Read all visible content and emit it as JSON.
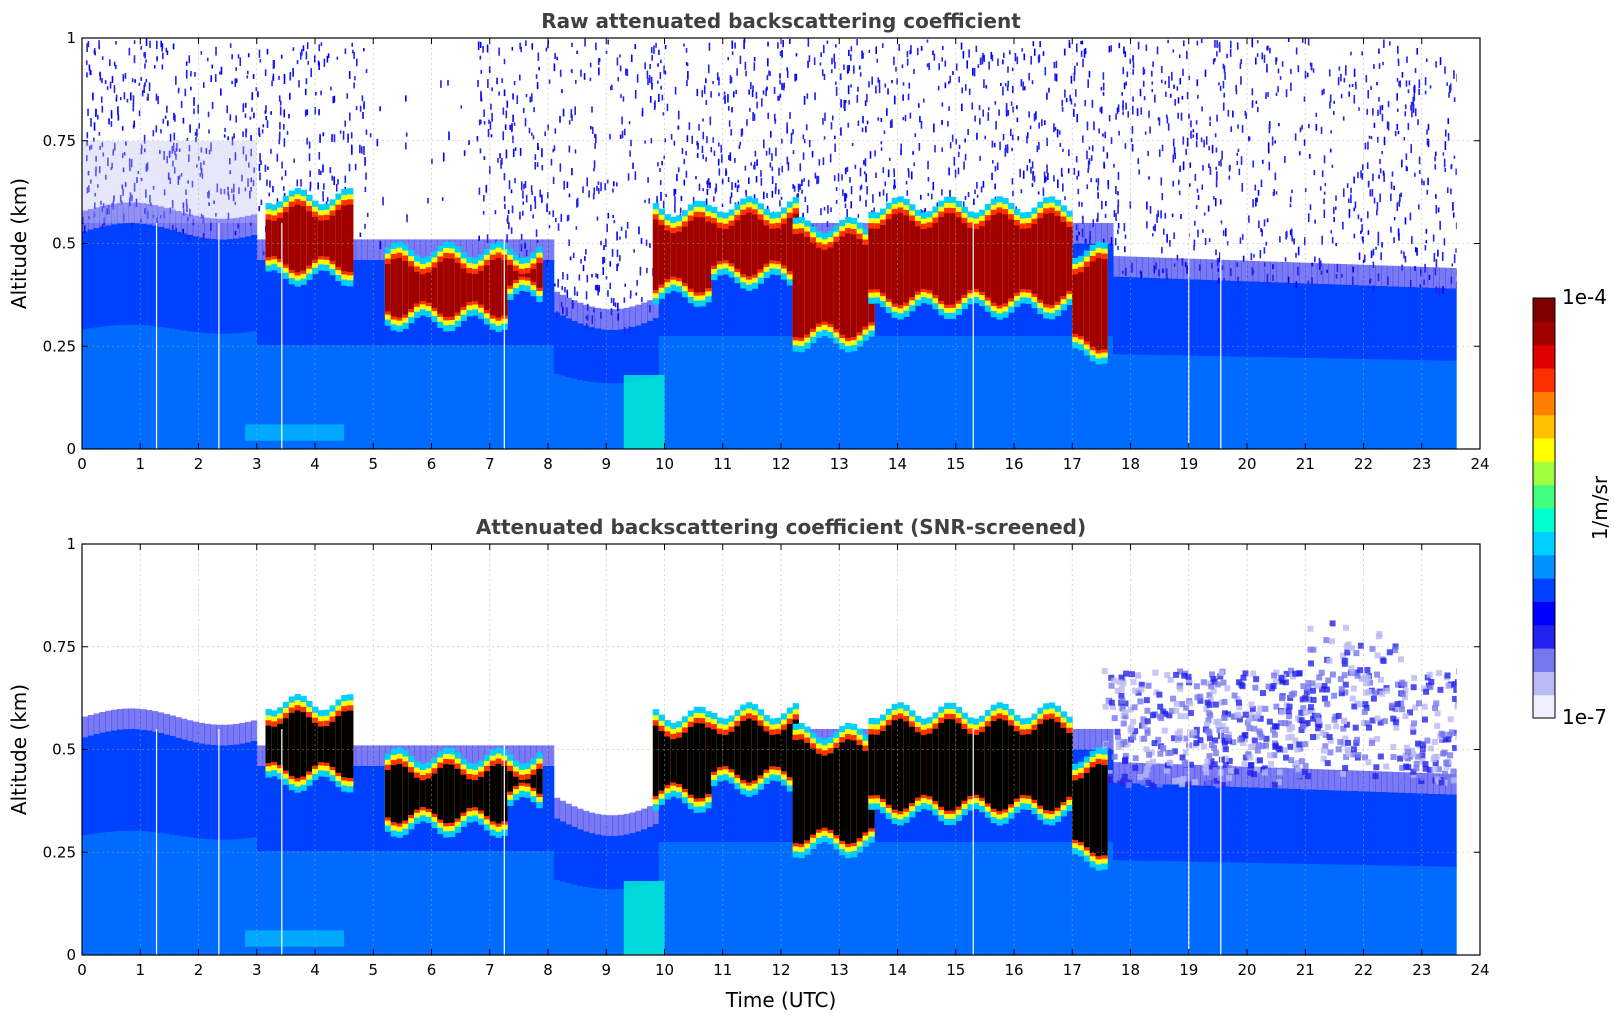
{
  "chart_data": [
    {
      "type": "heatmap",
      "title": "Raw attenuated backscattering coefficient",
      "xlabel": "",
      "ylabel": "Altitude (km)",
      "xlim": [
        0,
        24
      ],
      "ylim": [
        0,
        1
      ],
      "xticks": [
        "0",
        "1",
        "2",
        "3",
        "4",
        "5",
        "6",
        "7",
        "8",
        "9",
        "10",
        "11",
        "12",
        "13",
        "14",
        "15",
        "16",
        "17",
        "18",
        "19",
        "20",
        "21",
        "22",
        "23",
        "24"
      ],
      "yticks": [
        "0",
        "0.25",
        "0.5",
        "0.75",
        "1"
      ],
      "grid": true,
      "data_end_time": 23.6,
      "noise_level": "high",
      "cloud_layers": [
        {
          "t0": 3.15,
          "t1": 4.6,
          "base": 0.43,
          "top": 0.6
        },
        {
          "t0": 5.2,
          "t1": 7.2,
          "base": 0.32,
          "top": 0.47
        },
        {
          "t0": 7.3,
          "t1": 7.8,
          "base": 0.38,
          "top": 0.47
        },
        {
          "t0": 9.8,
          "t1": 10.7,
          "base": 0.38,
          "top": 0.57
        },
        {
          "t0": 10.8,
          "t1": 12.2,
          "base": 0.42,
          "top": 0.58
        },
        {
          "t0": 12.2,
          "t1": 13.5,
          "base": 0.27,
          "top": 0.53
        },
        {
          "t0": 13.5,
          "t1": 17.0,
          "base": 0.35,
          "top": 0.58
        },
        {
          "t0": 17.0,
          "t1": 17.6,
          "base": 0.24,
          "top": 0.47
        }
      ]
    },
    {
      "type": "heatmap",
      "title": "Attenuated backscattering coefficient (SNR-screened)",
      "xlabel": "Time (UTC)",
      "ylabel": "Altitude (km)",
      "xlim": [
        0,
        24
      ],
      "ylim": [
        0,
        1
      ],
      "xticks": [
        "0",
        "1",
        "2",
        "3",
        "4",
        "5",
        "6",
        "7",
        "8",
        "9",
        "10",
        "11",
        "12",
        "13",
        "14",
        "15",
        "16",
        "17",
        "18",
        "19",
        "20",
        "21",
        "22",
        "23",
        "24"
      ],
      "yticks": [
        "0",
        "0.25",
        "0.5",
        "0.75",
        "1"
      ],
      "grid": true,
      "data_end_time": 23.6,
      "noise_level": "screened",
      "saturated_color": "#000000",
      "cloud_layers": [
        {
          "t0": 3.15,
          "t1": 4.6,
          "base": 0.43,
          "top": 0.6
        },
        {
          "t0": 5.2,
          "t1": 7.2,
          "base": 0.32,
          "top": 0.47
        },
        {
          "t0": 7.3,
          "t1": 7.8,
          "base": 0.38,
          "top": 0.47
        },
        {
          "t0": 9.8,
          "t1": 10.7,
          "base": 0.38,
          "top": 0.57
        },
        {
          "t0": 10.8,
          "t1": 12.2,
          "base": 0.42,
          "top": 0.58
        },
        {
          "t0": 12.2,
          "t1": 13.5,
          "base": 0.27,
          "top": 0.53
        },
        {
          "t0": 13.5,
          "t1": 17.0,
          "base": 0.35,
          "top": 0.58
        },
        {
          "t0": 17.0,
          "t1": 17.6,
          "base": 0.24,
          "top": 0.47
        }
      ]
    }
  ],
  "colorbar": {
    "label": "1/m/sr",
    "max_label": "1e-4",
    "min_label": "1e-7",
    "colors": [
      "#eeeeff",
      "#b9b9f5",
      "#7777ee",
      "#2222ee",
      "#0000ff",
      "#0040ff",
      "#0090ff",
      "#00d0ff",
      "#00ffd0",
      "#40ff80",
      "#a0ff40",
      "#ffff00",
      "#ffc000",
      "#ff8000",
      "#ff3000",
      "#e00000",
      "#a00000",
      "#800000"
    ]
  }
}
